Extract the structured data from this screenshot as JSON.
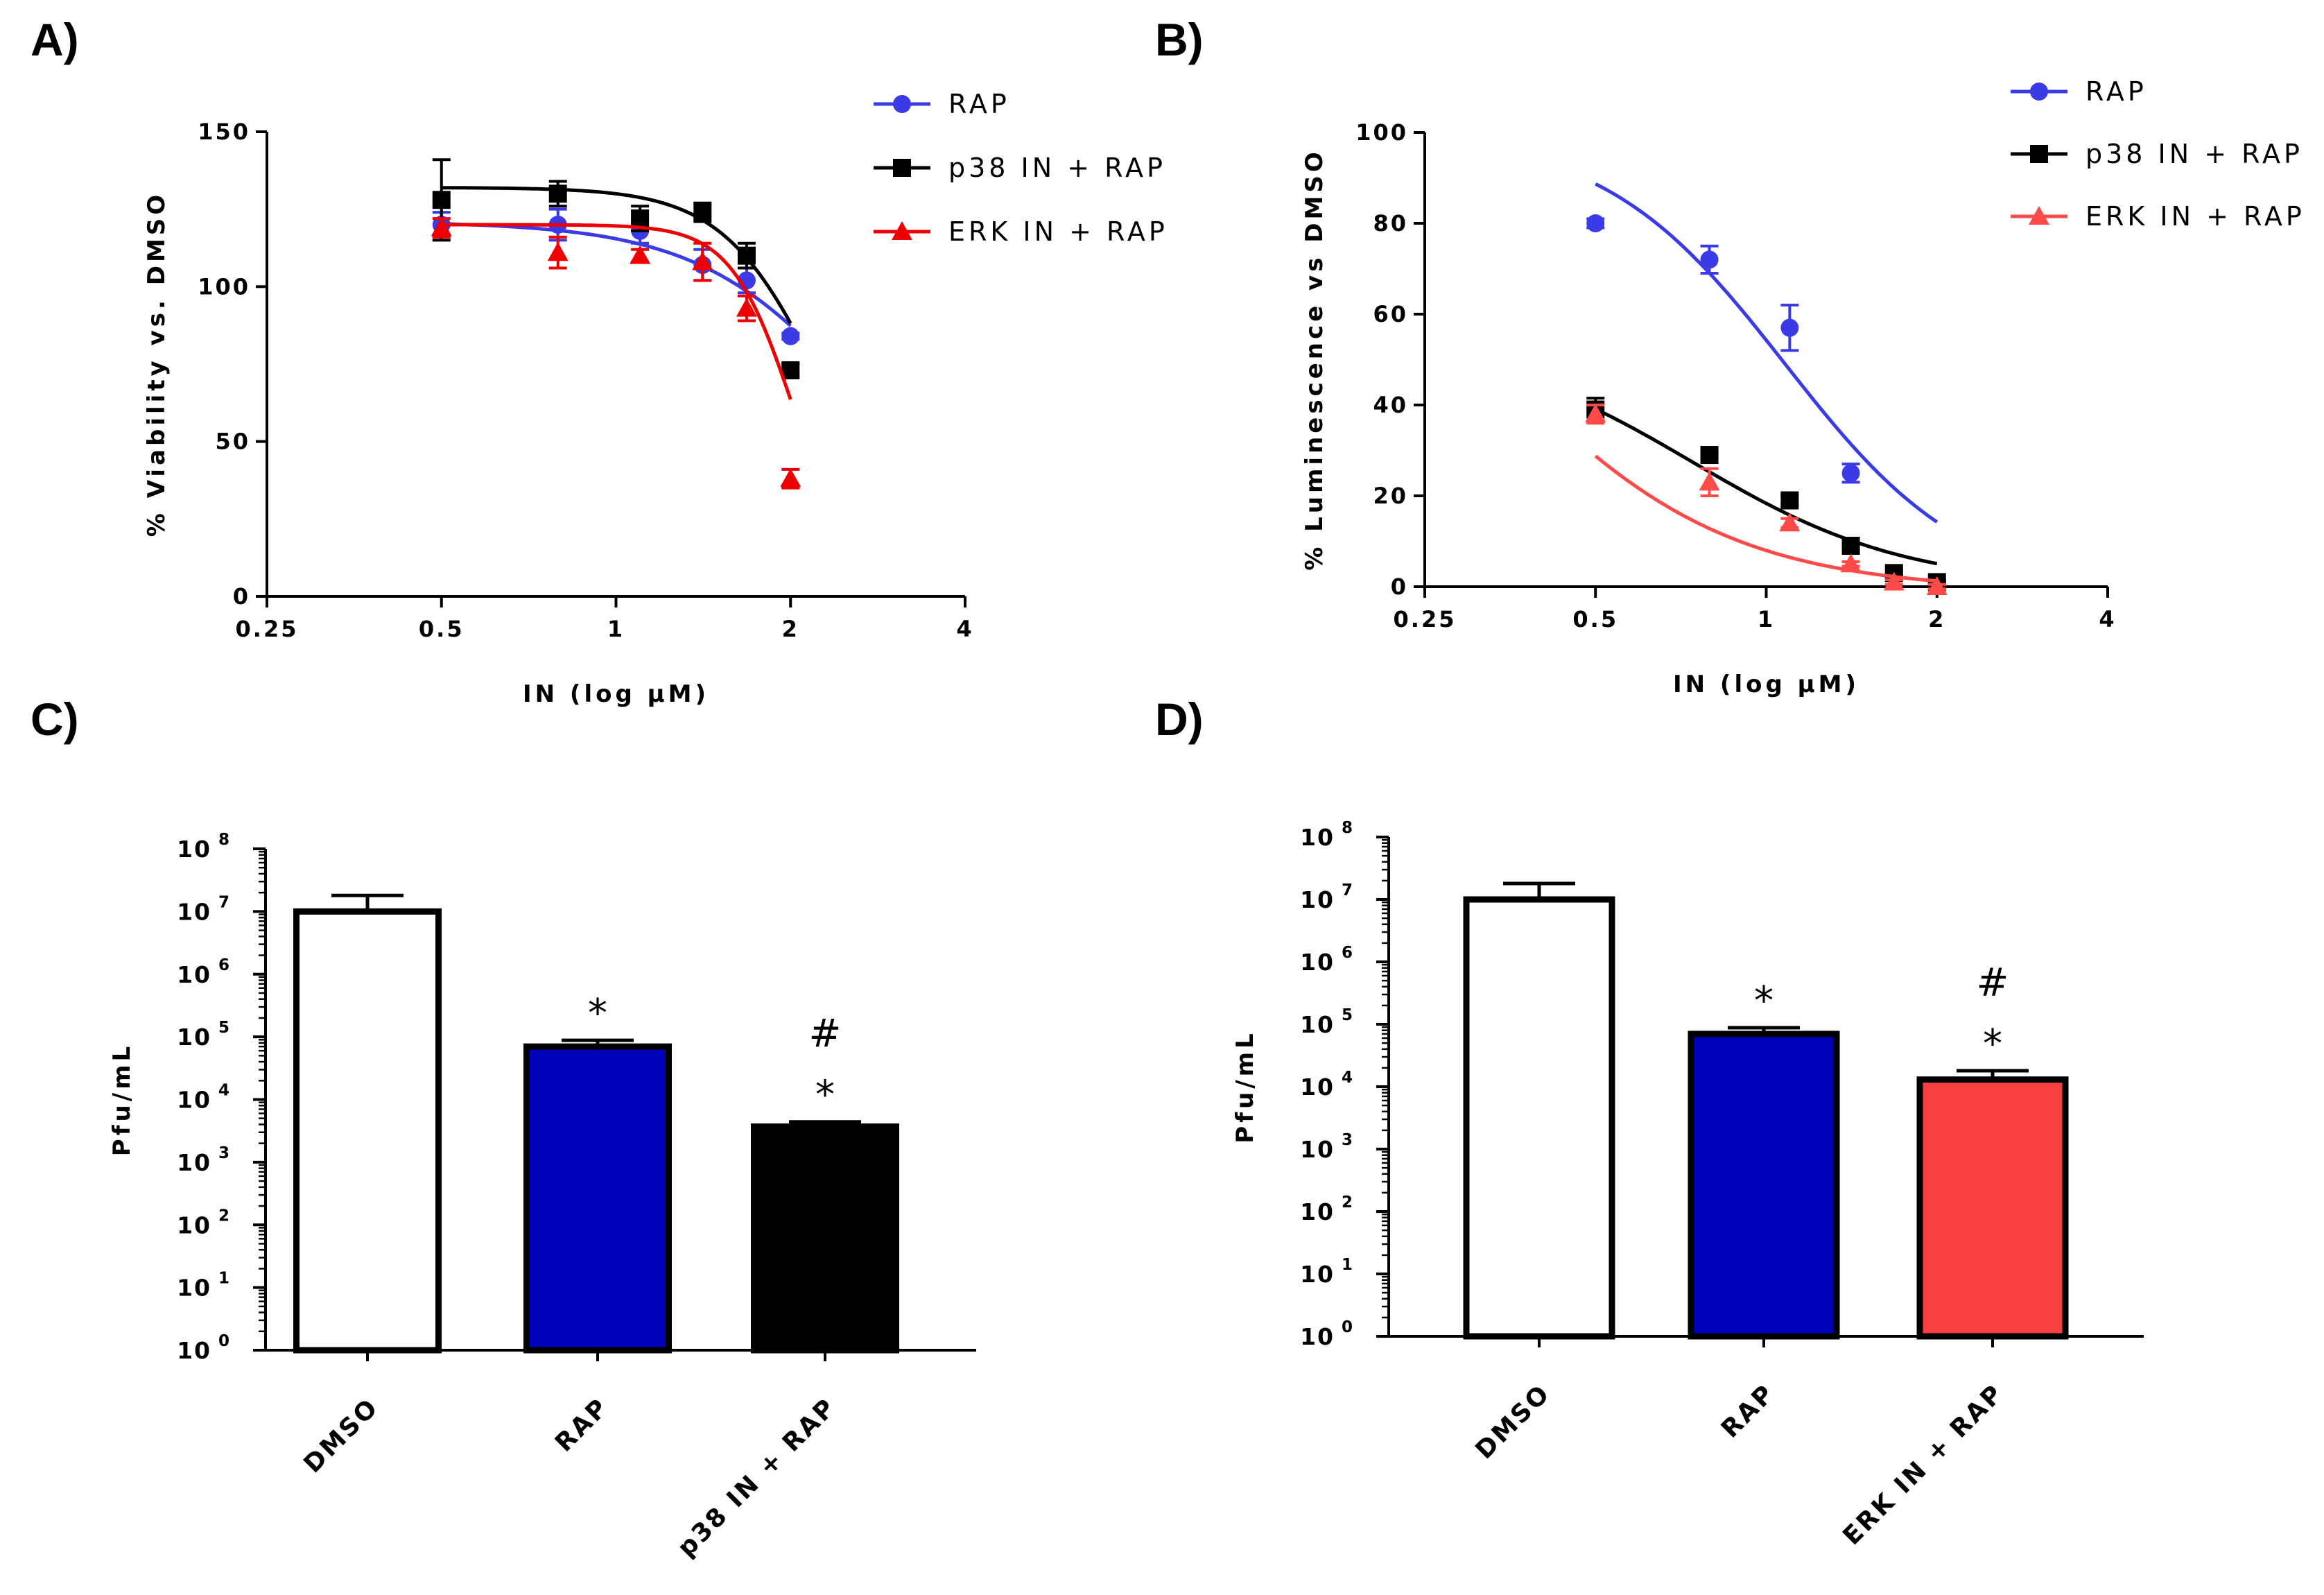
{
  "chart_data": [
    {
      "id": "A",
      "panel_label": "A)",
      "type": "line",
      "xscale": "log2",
      "xlabel": "IN (log µM)",
      "ylabel": "% Viability vs. DMSO",
      "xlim": [
        0.25,
        4
      ],
      "ylim": [
        0,
        150
      ],
      "xticks": [
        {
          "value": 0.25,
          "label": "0.25"
        },
        {
          "value": 0.5,
          "label": "0.5"
        },
        {
          "value": 1,
          "label": "1"
        },
        {
          "value": 2,
          "label": "2"
        },
        {
          "value": 4,
          "label": "4"
        }
      ],
      "yticks": [
        {
          "value": 0,
          "label": "0"
        },
        {
          "value": 50,
          "label": "50"
        },
        {
          "value": 100,
          "label": "100"
        },
        {
          "value": 150,
          "label": "150"
        }
      ],
      "legend": "top-right",
      "series": [
        {
          "name": "RAP",
          "color": "#3a3ae6",
          "marker": "circle",
          "x": [
            0.5,
            0.794,
            1.1,
            1.41,
            1.68,
            2.0
          ],
          "y": [
            120,
            120,
            118,
            107,
            102,
            84
          ],
          "err": [
            4,
            5,
            4,
            5,
            4,
            1
          ],
          "fit": {
            "top": 121,
            "bottom": 0,
            "ec50": 2.75,
            "hill": 3
          }
        },
        {
          "name": "p38 IN + RAP",
          "color": "#000000",
          "marker": "square",
          "x": [
            0.5,
            0.794,
            1.1,
            1.41,
            1.68,
            2.0
          ],
          "y": [
            128,
            130,
            122,
            124,
            110,
            73
          ],
          "err": [
            13,
            4,
            4,
            3,
            4,
            2
          ],
          "fit": {
            "top": 132,
            "bottom": 0,
            "ec50": 2.3,
            "hill": 5
          }
        },
        {
          "name": "ERK IN + RAP",
          "color": "#ee0000",
          "marker": "triangle",
          "x": [
            0.5,
            0.794,
            1.1,
            1.41,
            1.68,
            2.0
          ],
          "y": [
            119,
            111,
            110,
            108,
            93,
            38
          ],
          "err": [
            3,
            5,
            2,
            6,
            4,
            3
          ],
          "fit": {
            "top": 120,
            "bottom": 0,
            "ec50": 2.03,
            "hill": 8
          }
        }
      ]
    },
    {
      "id": "B",
      "panel_label": "B)",
      "type": "line",
      "xscale": "log2",
      "xlabel": "IN (log µM)",
      "ylabel": "% Luminescence vs DMSO",
      "xlim": [
        0.25,
        4
      ],
      "ylim": [
        0,
        100
      ],
      "xticks": [
        {
          "value": 0.25,
          "label": "0.25"
        },
        {
          "value": 0.5,
          "label": "0.5"
        },
        {
          "value": 1,
          "label": "1"
        },
        {
          "value": 2,
          "label": "2"
        },
        {
          "value": 4,
          "label": "4"
        }
      ],
      "yticks": [
        {
          "value": 0,
          "label": "0"
        },
        {
          "value": 20,
          "label": "20"
        },
        {
          "value": 40,
          "label": "40"
        },
        {
          "value": 60,
          "label": "60"
        },
        {
          "value": 80,
          "label": "80"
        },
        {
          "value": 100,
          "label": "100"
        }
      ],
      "legend": "top-right",
      "series": [
        {
          "name": "RAP",
          "color": "#3a3ae6",
          "marker": "circle",
          "x": [
            0.5,
            0.794,
            1.1,
            1.41,
            2.0
          ],
          "y": [
            80,
            72,
            57,
            25,
            1
          ],
          "err": [
            1,
            3,
            5,
            2,
            0.5
          ],
          "fit": {
            "top": 100,
            "bottom": -2,
            "ec50": 1.08,
            "hill": 2.7
          }
        },
        {
          "name": "p38 IN + RAP",
          "color": "#000000",
          "marker": "square",
          "x": [
            0.5,
            0.794,
            1.1,
            1.41,
            1.68,
            2.0
          ],
          "y": [
            39,
            29,
            19,
            9,
            3,
            1
          ],
          "err": [
            2.5,
            1,
            1,
            0.5,
            0.5,
            0.5
          ],
          "fit": {
            "top": 55,
            "bottom": 0,
            "ec50": 0.74,
            "hill": 2.3
          }
        },
        {
          "name": "ERK IN + RAP",
          "color": "#ff4a4a",
          "marker": "triangle",
          "x": [
            0.5,
            0.794,
            1.1,
            1.41,
            1.68,
            2.0
          ],
          "y": [
            38,
            23,
            14,
            5,
            1,
            0
          ],
          "err": [
            2,
            3,
            1,
            0.5,
            0.5,
            0.5
          ],
          "fit": {
            "top": 100,
            "bottom": -1,
            "ec50": 0.33,
            "hill": 2.1
          }
        }
      ]
    },
    {
      "id": "C",
      "panel_label": "C)",
      "type": "bar",
      "yscale": "log10",
      "ylabel": "Pfu/mL",
      "ylim": [
        1,
        100000000
      ],
      "ytick_base": "10",
      "ytick_exponents": [
        "0",
        "1",
        "2",
        "3",
        "4",
        "5",
        "6",
        "7",
        "8"
      ],
      "categories": [
        "DMSO",
        "RAP",
        "p38 IN + RAP"
      ],
      "values": [
        10000000,
        70000,
        3700
      ],
      "error_upper": [
        18000000,
        88000,
        4400
      ],
      "colors": [
        "#ffffff",
        "#0000bb",
        "#000000"
      ],
      "annotations": [
        [],
        [
          "*"
        ],
        [
          "*",
          "#"
        ]
      ]
    },
    {
      "id": "D",
      "panel_label": "D)",
      "type": "bar",
      "yscale": "log10",
      "ylabel": "Pfu/mL",
      "ylim": [
        1,
        100000000
      ],
      "ytick_base": "10",
      "ytick_exponents": [
        "0",
        "1",
        "2",
        "3",
        "4",
        "5",
        "6",
        "7",
        "8"
      ],
      "categories": [
        "DMSO",
        "RAP",
        "ERK IN + RAP"
      ],
      "values": [
        10000000,
        70000,
        13000
      ],
      "error_upper": [
        18000000,
        88000,
        18000
      ],
      "colors": [
        "#ffffff",
        "#0000bb",
        "#f84040"
      ],
      "annotations": [
        [],
        [
          "*"
        ],
        [
          "*",
          "#"
        ]
      ]
    }
  ]
}
